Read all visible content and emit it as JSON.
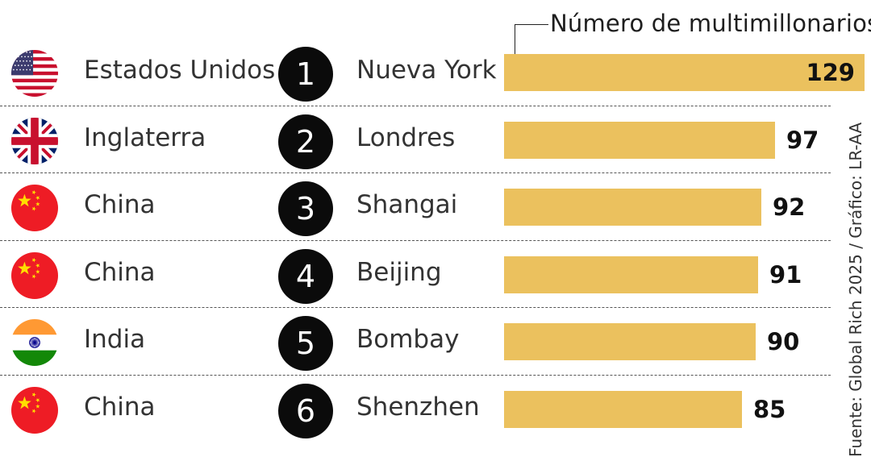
{
  "legend": "Número de multimillonarios",
  "source": "Fuente: Global Rich 2025 / Gráfico: LR-AA",
  "colors": {
    "bar": "#ebc15e",
    "rank_circle": "#0b0b0b",
    "separator": "#555555"
  },
  "chart_data": {
    "type": "bar",
    "orientation": "horizontal",
    "series": [
      {
        "name": "Número de multimillonarios",
        "values": [
          129,
          97,
          92,
          91,
          90,
          85
        ]
      }
    ],
    "categories": [
      "Nueva York",
      "Londres",
      "Shangai",
      "Beijing",
      "Bombay",
      "Shenzhen"
    ],
    "rows": [
      {
        "rank": "1",
        "country": "Estados Unidos",
        "flag": "usa-flag-icon",
        "city": "Nueva York",
        "value": 129
      },
      {
        "rank": "2",
        "country": "Inglaterra",
        "flag": "uk-flag-icon",
        "city": "Londres",
        "value": 97
      },
      {
        "rank": "3",
        "country": "China",
        "flag": "china-flag-icon",
        "city": "Shangai",
        "value": 92
      },
      {
        "rank": "4",
        "country": "China",
        "flag": "china-flag-icon",
        "city": "Beijing",
        "value": 91
      },
      {
        "rank": "5",
        "country": "India",
        "flag": "india-flag-icon",
        "city": "Bombay",
        "value": 90
      },
      {
        "rank": "6",
        "country": "China",
        "flag": "china-flag-icon",
        "city": "Shenzhen",
        "value": 85
      }
    ]
  }
}
